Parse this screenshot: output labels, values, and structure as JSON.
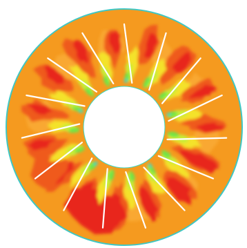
{
  "figure": {
    "kind": "annular contour plot",
    "blade_count": 15,
    "colors": {
      "background": "#ffffff",
      "outline": "#3fc7c4",
      "orange": "#f59a1f",
      "orange_light": "#f9a830",
      "red": "#e8271c",
      "red_orange": "#ef5a1d",
      "yellow": "#f4e22a",
      "yellow_green": "#c7ec39",
      "green": "#6ee646",
      "cyan": "#3fd7c2",
      "blade": "#ffffff"
    }
  }
}
